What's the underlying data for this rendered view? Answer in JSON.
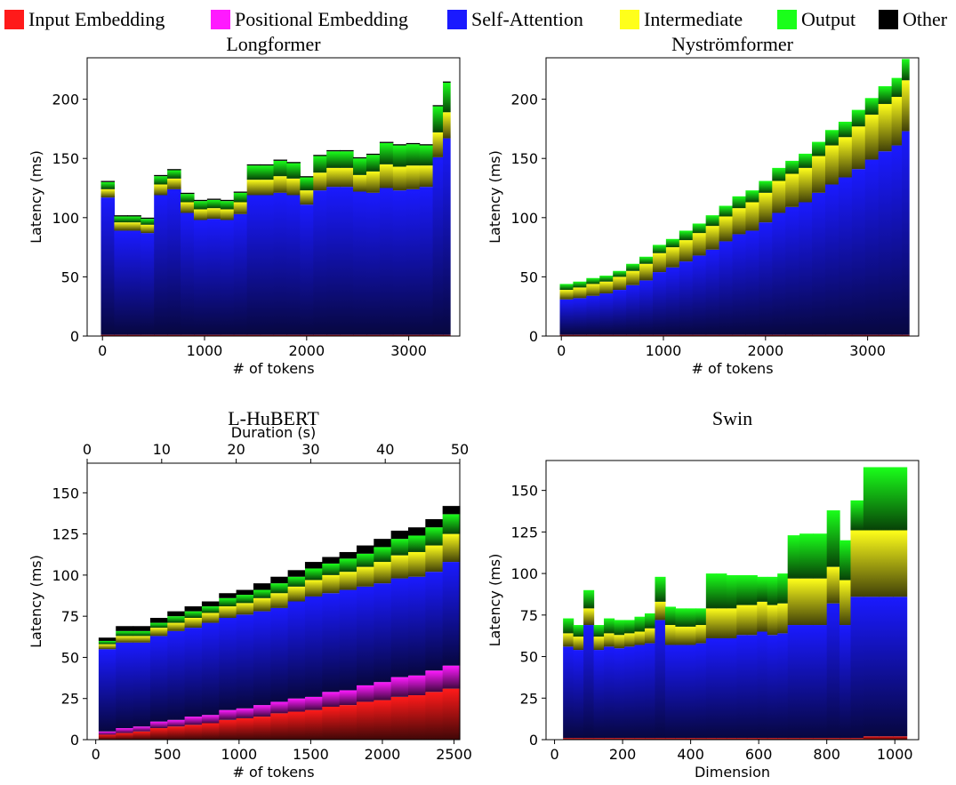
{
  "legend": {
    "items": [
      {
        "label": "Input Embedding",
        "color": "#ff1a1a"
      },
      {
        "label": "Positional Embedding",
        "color": "#ff1aff"
      },
      {
        "label": "Self-Attention",
        "color": "#1a1aff"
      },
      {
        "label": "Intermediate",
        "color": "#ffff1a"
      },
      {
        "label": "Output",
        "color": "#1aff1a"
      },
      {
        "label": "Other",
        "color": "#000000"
      }
    ]
  },
  "chart_data": [
    {
      "type": "bar",
      "stacked": true,
      "title": "Longformer",
      "xlabel": "# of tokens",
      "ylabel": "Latency (ms)",
      "xlim": [
        -150,
        3500
      ],
      "ylim": [
        0,
        235
      ],
      "xticks": [
        0,
        1000,
        2000,
        3000
      ],
      "yticks": [
        0,
        50,
        100,
        150,
        200
      ],
      "x": [
        50,
        180,
        310,
        440,
        570,
        700,
        830,
        960,
        1090,
        1220,
        1350,
        1480,
        1610,
        1740,
        1870,
        2000,
        2130,
        2260,
        2390,
        2520,
        2650,
        2780,
        2910,
        3040,
        3170,
        3300,
        3370
      ],
      "components": {
        "Input Embedding": [
          1,
          1,
          1,
          1,
          1,
          1,
          1,
          1,
          1,
          1,
          1,
          1,
          1,
          1,
          1,
          1,
          1,
          1,
          1,
          1,
          1,
          1,
          1,
          1,
          1,
          1,
          1
        ],
        "Positional Embedding": [
          0,
          0,
          0,
          0,
          0,
          0,
          0,
          0,
          0,
          0,
          0,
          0,
          0,
          0,
          0,
          0,
          0,
          0,
          0,
          0,
          0,
          0,
          0,
          0,
          0,
          0,
          0
        ],
        "Self-Attention": [
          116,
          88,
          88,
          86,
          118,
          123,
          103,
          97,
          98,
          97,
          102,
          118,
          118,
          120,
          118,
          110,
          122,
          125,
          125,
          121,
          120,
          124,
          122,
          123,
          125,
          150,
          166
        ],
        "Intermediate": [
          7,
          7,
          7,
          7,
          9,
          9,
          9,
          9,
          9,
          9,
          10,
          13,
          13,
          14,
          14,
          12,
          15,
          16,
          16,
          14,
          18,
          20,
          20,
          20,
          18,
          21,
          22
        ],
        "Output": [
          6,
          5,
          5,
          5,
          7,
          7,
          7,
          7,
          7,
          7,
          8,
          12,
          12,
          13,
          13,
          11,
          14,
          14,
          14,
          14,
          14,
          18,
          18,
          18,
          17,
          22,
          25
        ],
        "Other": [
          1,
          1,
          1,
          1,
          1,
          1,
          1,
          1,
          1,
          1,
          1,
          1,
          1,
          1,
          1,
          1,
          1,
          1,
          1,
          1,
          1,
          1,
          1,
          1,
          1,
          1,
          1
        ]
      }
    },
    {
      "type": "bar",
      "stacked": true,
      "title": "Nyströmformer",
      "xlabel": "# of tokens",
      "ylabel": "Latency (ms)",
      "xlim": [
        -150,
        3500
      ],
      "ylim": [
        0,
        235
      ],
      "xticks": [
        0,
        1000,
        2000,
        3000
      ],
      "yticks": [
        0,
        50,
        100,
        150,
        200
      ],
      "x": [
        50,
        180,
        310,
        440,
        570,
        700,
        830,
        960,
        1090,
        1220,
        1350,
        1480,
        1610,
        1740,
        1870,
        2000,
        2130,
        2260,
        2390,
        2520,
        2650,
        2780,
        2910,
        3040,
        3170,
        3300,
        3370
      ],
      "components": {
        "Input Embedding": [
          1,
          1,
          1,
          1,
          1,
          1,
          1,
          1,
          1,
          1,
          1,
          1,
          1,
          1,
          1,
          1,
          1,
          1,
          1,
          1,
          1,
          1,
          1,
          1,
          1,
          1,
          1
        ],
        "Positional Embedding": [
          0,
          0,
          0,
          0,
          0,
          0,
          0,
          0,
          0,
          0,
          0,
          0,
          0,
          0,
          0,
          0,
          0,
          0,
          0,
          0,
          0,
          0,
          0,
          0,
          0,
          0,
          0
        ],
        "Self-Attention": [
          30,
          31,
          33,
          35,
          38,
          42,
          46,
          53,
          57,
          62,
          67,
          72,
          79,
          85,
          88,
          95,
          103,
          108,
          112,
          120,
          127,
          133,
          140,
          148,
          155,
          160,
          172
        ],
        "Intermediate": [
          8,
          9,
          10,
          10,
          11,
          12,
          14,
          16,
          17,
          18,
          19,
          20,
          21,
          22,
          24,
          25,
          27,
          28,
          29,
          31,
          33,
          34,
          36,
          38,
          40,
          41,
          43
        ],
        "Output": [
          5,
          5,
          5,
          5,
          5,
          6,
          6,
          7,
          7,
          8,
          8,
          9,
          9,
          10,
          10,
          10,
          11,
          11,
          12,
          12,
          13,
          13,
          14,
          14,
          15,
          16,
          18
        ],
        "Other": [
          0,
          0,
          0,
          0,
          0,
          0,
          0,
          0,
          0,
          0,
          0,
          0,
          0,
          0,
          0,
          0,
          0,
          0,
          0,
          0,
          0,
          0,
          0,
          0,
          0,
          0,
          0
        ]
      }
    },
    {
      "type": "bar",
      "stacked": true,
      "title": "L-HuBERT",
      "xlabel": "# of tokens",
      "ylabel": "Latency (ms)",
      "top_xlabel": "Duration (s)",
      "top_xlim": [
        0,
        50
      ],
      "top_xticks": [
        0,
        10,
        20,
        30,
        40,
        50
      ],
      "xlim": [
        -60,
        2540
      ],
      "ylim": [
        0,
        168
      ],
      "xticks": [
        0,
        500,
        1000,
        1500,
        2000,
        2500
      ],
      "yticks": [
        0,
        25,
        50,
        75,
        100,
        125,
        150
      ],
      "x": [
        80,
        200,
        320,
        440,
        560,
        680,
        800,
        920,
        1040,
        1160,
        1280,
        1400,
        1520,
        1640,
        1760,
        1880,
        2000,
        2120,
        2240,
        2360,
        2480
      ],
      "components": {
        "Input Embedding": [
          3,
          4,
          5,
          7,
          8,
          9,
          10,
          12,
          13,
          14,
          16,
          17,
          18,
          20,
          21,
          23,
          24,
          26,
          27,
          29,
          31
        ],
        "Positional Embedding": [
          2,
          3,
          3,
          4,
          4,
          5,
          5,
          6,
          6,
          7,
          7,
          8,
          8,
          9,
          9,
          10,
          11,
          12,
          12,
          13,
          14
        ],
        "Self-Attention": [
          50,
          52,
          51,
          52,
          54,
          54,
          56,
          56,
          57,
          57,
          57,
          59,
          61,
          60,
          61,
          60,
          60,
          60,
          60,
          60,
          63
        ],
        "Intermediate": [
          3,
          4,
          4,
          5,
          5,
          6,
          6,
          7,
          7,
          8,
          9,
          9,
          10,
          11,
          11,
          12,
          13,
          14,
          15,
          16,
          17
        ],
        "Output": [
          2,
          3,
          3,
          3,
          4,
          4,
          4,
          5,
          5,
          5,
          6,
          6,
          7,
          7,
          8,
          8,
          9,
          10,
          10,
          11,
          12
        ],
        "Other": [
          2,
          3,
          3,
          3,
          3,
          3,
          3,
          3,
          3,
          4,
          4,
          4,
          4,
          4,
          4,
          5,
          5,
          5,
          5,
          5,
          5
        ]
      }
    },
    {
      "type": "bar",
      "stacked": true,
      "title": "Swin",
      "xlabel": "Dimension",
      "ylabel": "Latency (ms)",
      "xlim": [
        -25,
        1070
      ],
      "ylim": [
        0,
        168
      ],
      "xticks": [
        0,
        200,
        400,
        600,
        800,
        1000
      ],
      "yticks": [
        0,
        25,
        50,
        75,
        100,
        125,
        150
      ],
      "x": [
        40,
        70,
        100,
        130,
        160,
        190,
        220,
        250,
        280,
        310,
        340,
        370,
        400,
        430,
        460,
        490,
        520,
        550,
        580,
        610,
        640,
        670,
        700,
        740,
        780,
        820,
        855,
        885,
        930,
        975,
        1015
      ],
      "components": {
        "Input Embedding": [
          1,
          1,
          1,
          1,
          1,
          1,
          1,
          1,
          1,
          1,
          1,
          1,
          1,
          1,
          1,
          1,
          1,
          1,
          1,
          1,
          1,
          1,
          1,
          1,
          1,
          1,
          1,
          1,
          2,
          2,
          2
        ],
        "Positional Embedding": [
          0,
          0,
          0,
          0,
          0,
          0,
          0,
          0,
          0,
          0,
          0,
          0,
          0,
          0,
          0,
          0,
          0,
          0,
          0,
          0,
          0,
          0,
          0,
          0,
          0,
          0,
          0,
          0,
          0,
          0,
          0
        ],
        "Self-Attention": [
          55,
          53,
          68,
          53,
          55,
          54,
          55,
          56,
          57,
          71,
          56,
          56,
          56,
          57,
          60,
          60,
          60,
          62,
          62,
          64,
          62,
          63,
          68,
          68,
          68,
          81,
          68,
          85,
          84,
          84,
          84
        ],
        "Intermediate": [
          8,
          8,
          10,
          8,
          8,
          8,
          8,
          8,
          9,
          11,
          12,
          11,
          11,
          11,
          18,
          18,
          18,
          18,
          18,
          18,
          18,
          18,
          28,
          28,
          28,
          22,
          27,
          40,
          40,
          40,
          40
        ],
        "Output": [
          9,
          7,
          11,
          7,
          9,
          9,
          8,
          9,
          9,
          15,
          11,
          11,
          11,
          10,
          21,
          21,
          20,
          18,
          18,
          15,
          17,
          18,
          26,
          27,
          27,
          34,
          24,
          18,
          38,
          38,
          38
        ],
        "Other": [
          0,
          0,
          0,
          0,
          0,
          0,
          0,
          0,
          0,
          0,
          0,
          0,
          0,
          0,
          0,
          0,
          0,
          0,
          0,
          0,
          0,
          0,
          0,
          0,
          0,
          0,
          0,
          0,
          0,
          0,
          0
        ]
      }
    }
  ]
}
